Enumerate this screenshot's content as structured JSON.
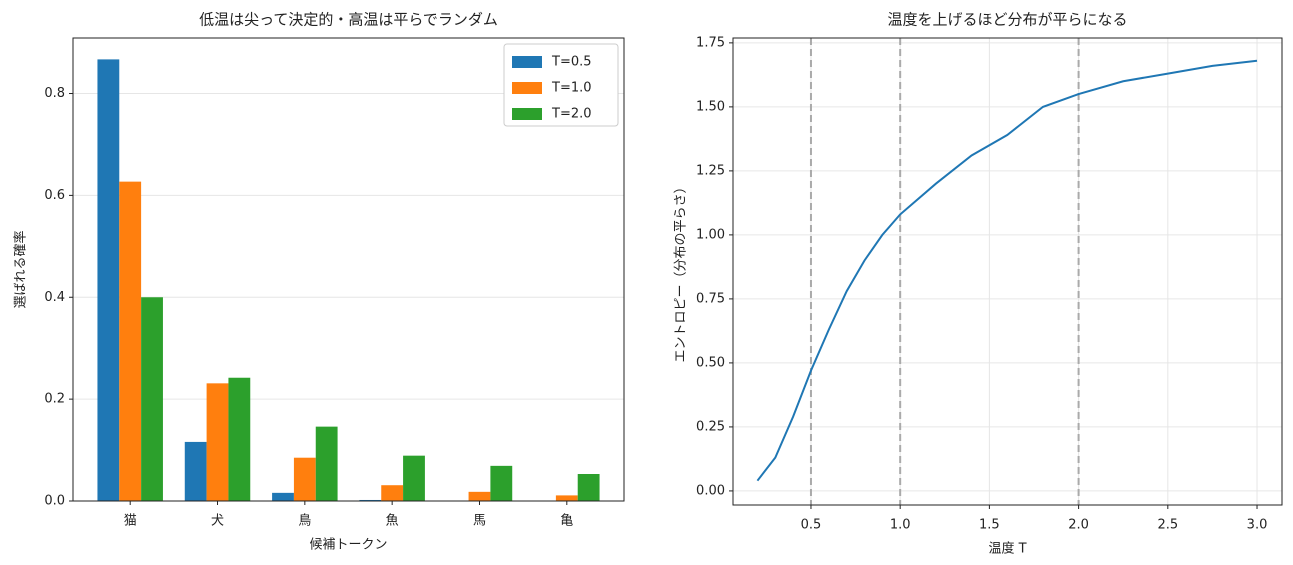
{
  "chart_data": [
    {
      "type": "bar",
      "title": "低温は尖って決定的・高温は平らでランダム",
      "xlabel": "候補トークン",
      "ylabel": "選ばれる確率",
      "categories": [
        "猫",
        "犬",
        "鳥",
        "魚",
        "馬",
        "亀"
      ],
      "series": [
        {
          "name": "T=0.5",
          "color": "#1f77b4",
          "values": [
            0.867,
            0.116,
            0.016,
            0.002,
            0.0005,
            0.0002
          ]
        },
        {
          "name": "T=1.0",
          "color": "#ff7f0e",
          "values": [
            0.627,
            0.231,
            0.085,
            0.031,
            0.018,
            0.011
          ]
        },
        {
          "name": "T=2.0",
          "color": "#2ca02c",
          "values": [
            0.4,
            0.242,
            0.146,
            0.089,
            0.069,
            0.053
          ]
        }
      ],
      "ylim": [
        0,
        0.909
      ],
      "yticks": [
        {
          "value": 0,
          "label": "0.0"
        },
        0.2,
        0.4,
        0.6,
        0.8
      ],
      "grid": true,
      "legend": "upper right"
    },
    {
      "type": "line",
      "title": "温度を上げるほど分布が平らになる",
      "xlabel": "温度 T",
      "ylabel": "エントロピー（分布の平らさ）",
      "x": [
        0.2,
        0.3,
        0.4,
        0.5,
        0.6,
        0.7,
        0.8,
        0.9,
        1.0,
        1.2,
        1.4,
        1.6,
        1.8,
        2.0,
        2.25,
        2.5,
        2.75,
        3.0
      ],
      "series": [
        {
          "name": "entropy",
          "color": "#1f77b4",
          "values": [
            0.04,
            0.13,
            0.29,
            0.47,
            0.63,
            0.78,
            0.9,
            1.0,
            1.08,
            1.2,
            1.31,
            1.39,
            1.5,
            1.55,
            1.6,
            1.63,
            1.66,
            1.68
          ]
        }
      ],
      "vlines": [
        0.5,
        1.0,
        2.0
      ],
      "xlim": [
        0.063,
        3.14
      ],
      "ylim": [
        -0.055,
        1.769
      ],
      "xticks": [
        0.5,
        {
          "value": 1,
          "label": "1.0"
        },
        1.5,
        {
          "value": 2,
          "label": "2.0"
        },
        2.5,
        {
          "value": 3,
          "label": "3.0"
        }
      ],
      "yticks": [
        {
          "value": 0,
          "label": "0.00"
        },
        0.25,
        {
          "value": 0.5,
          "label": "0.50"
        },
        0.75,
        {
          "value": 1,
          "label": "1.00"
        },
        1.25,
        {
          "value": 1.5,
          "label": "1.50"
        },
        1.75
      ],
      "grid": true
    }
  ]
}
